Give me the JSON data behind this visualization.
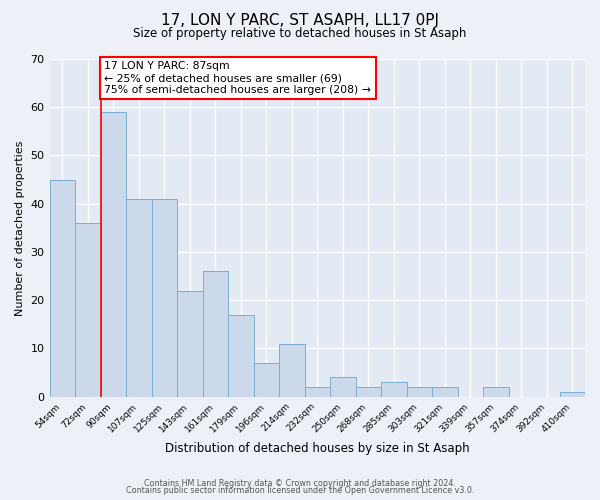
{
  "title": "17, LON Y PARC, ST ASAPH, LL17 0PJ",
  "subtitle": "Size of property relative to detached houses in St Asaph",
  "xlabel": "Distribution of detached houses by size in St Asaph",
  "ylabel": "Number of detached properties",
  "bin_labels": [
    "54sqm",
    "72sqm",
    "90sqm",
    "107sqm",
    "125sqm",
    "143sqm",
    "161sqm",
    "179sqm",
    "196sqm",
    "214sqm",
    "232sqm",
    "250sqm",
    "268sqm",
    "285sqm",
    "303sqm",
    "321sqm",
    "339sqm",
    "357sqm",
    "374sqm",
    "392sqm",
    "410sqm"
  ],
  "bar_heights": [
    45,
    36,
    59,
    41,
    41,
    22,
    26,
    17,
    7,
    11,
    2,
    4,
    2,
    3,
    2,
    2,
    0,
    2,
    0,
    0,
    1
  ],
  "bar_color": "#ccd9ea",
  "bar_edge_color": "#7aaed4",
  "red_line_index": 2,
  "annotation_line1": "17 LON Y PARC: 87sqm",
  "annotation_line2": "← 25% of detached houses are smaller (69)",
  "annotation_line3": "75% of semi-detached houses are larger (208) →",
  "ylim": [
    0,
    70
  ],
  "yticks": [
    0,
    10,
    20,
    30,
    40,
    50,
    60,
    70
  ],
  "footer1": "Contains HM Land Registry data © Crown copyright and database right 2024.",
  "footer2": "Contains public sector information licensed under the Open Government Licence v3.0.",
  "bg_color": "#edf1f7",
  "plot_bg_color": "#e4eaf4"
}
